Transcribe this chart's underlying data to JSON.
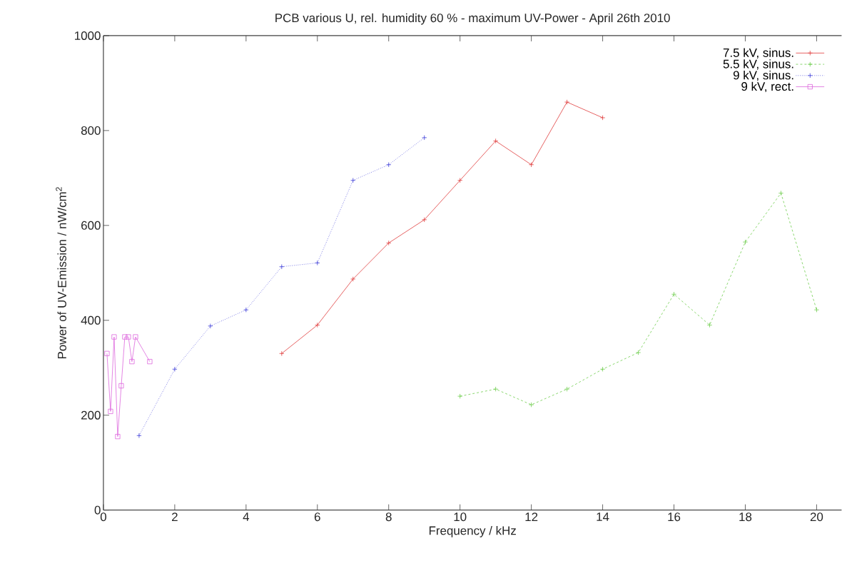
{
  "chart_data": {
    "type": "line",
    "title": "PCB various U, rel. humidity 60 % - maximum UV-Power - April 26th 2010",
    "xlabel": "Frequency / kHz",
    "ylabel": "Power of UV-Emission / nW/cm$^{2}$",
    "xlim": [
      0,
      20.7
    ],
    "xticks": [
      0,
      2,
      4,
      6,
      8,
      10,
      12,
      14,
      16,
      18,
      20
    ],
    "ylim": [
      0,
      1000
    ],
    "yticks": [
      0,
      200,
      400,
      600,
      800,
      1000
    ],
    "grid": false,
    "legend": "top right",
    "series": [
      {
        "name": "7.5 kV, sinus.",
        "color": "#e03a3a",
        "marker": "cross",
        "line_style": "solid",
        "x": [
          5,
          6,
          7,
          8,
          9,
          10,
          11,
          12,
          13,
          14
        ],
        "values": [
          330,
          390,
          487,
          563,
          612,
          695,
          778,
          728,
          860,
          827
        ]
      },
      {
        "name": "5.5 kV, sinus.",
        "color": "#6ccc4a",
        "marker": "cross",
        "line_style": "dashed",
        "x": [
          10,
          11,
          12,
          13,
          14,
          15,
          16,
          17,
          18,
          19,
          20
        ],
        "values": [
          240,
          255,
          222,
          255,
          297,
          332,
          455,
          390,
          565,
          668,
          422
        ]
      },
      {
        "name": "9 kV, sinus.",
        "color": "#3a3ad8",
        "marker": "cross",
        "line_style": "dotted",
        "x": [
          1,
          2,
          3,
          4,
          5,
          6,
          7,
          8,
          9
        ],
        "values": [
          157,
          297,
          388,
          422,
          513,
          521,
          695,
          728,
          785
        ]
      },
      {
        "name": "9 kV, rect.",
        "color": "#dd66dd",
        "marker": "square",
        "line_style": "solid",
        "x": [
          0.1,
          0.2,
          0.3,
          0.4,
          0.5,
          0.6,
          0.7,
          0.8,
          0.9,
          1.3
        ],
        "values": [
          330,
          208,
          365,
          155,
          262,
          365,
          365,
          313,
          365,
          313
        ]
      }
    ]
  }
}
